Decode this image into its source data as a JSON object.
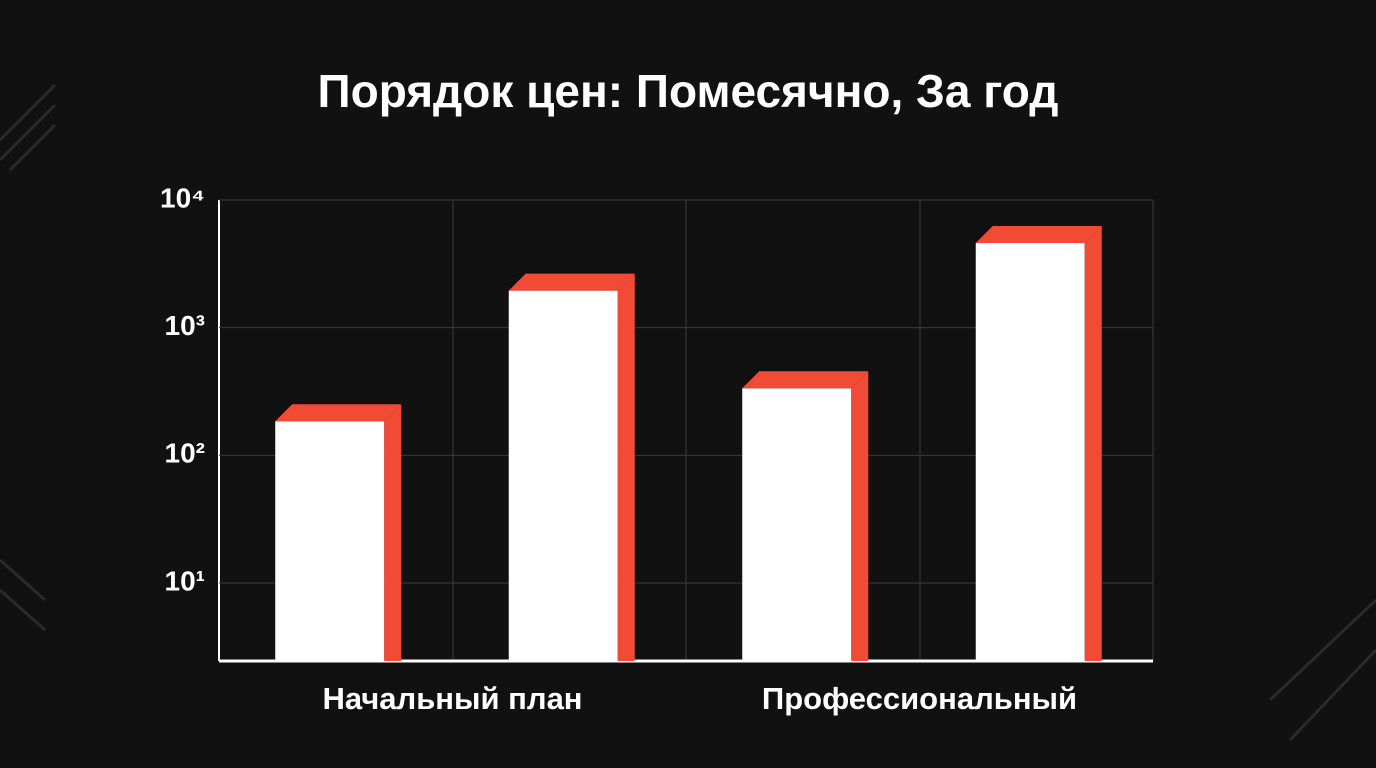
{
  "chart_data": {
    "type": "bar",
    "title": "Порядок цен: Помесячно, За год",
    "categories": [
      "Начальный план",
      "Профессиональный"
    ],
    "series": [
      {
        "color": "#ffffff",
        "edge_color": "#f24b35",
        "values": [
          185,
          335
        ]
      },
      {
        "color": "#ffffff",
        "edge_color": "#f24b35",
        "values": [
          1950,
          4600
        ]
      }
    ],
    "log_scale": true,
    "ylim": [
      2.45,
      10000
    ],
    "yticks": [
      {
        "value": 10,
        "label": "10¹"
      },
      {
        "value": 100,
        "label": "10²"
      },
      {
        "value": 1000,
        "label": "10³"
      },
      {
        "value": 10000,
        "label": "10⁴"
      }
    ],
    "grid": true
  }
}
